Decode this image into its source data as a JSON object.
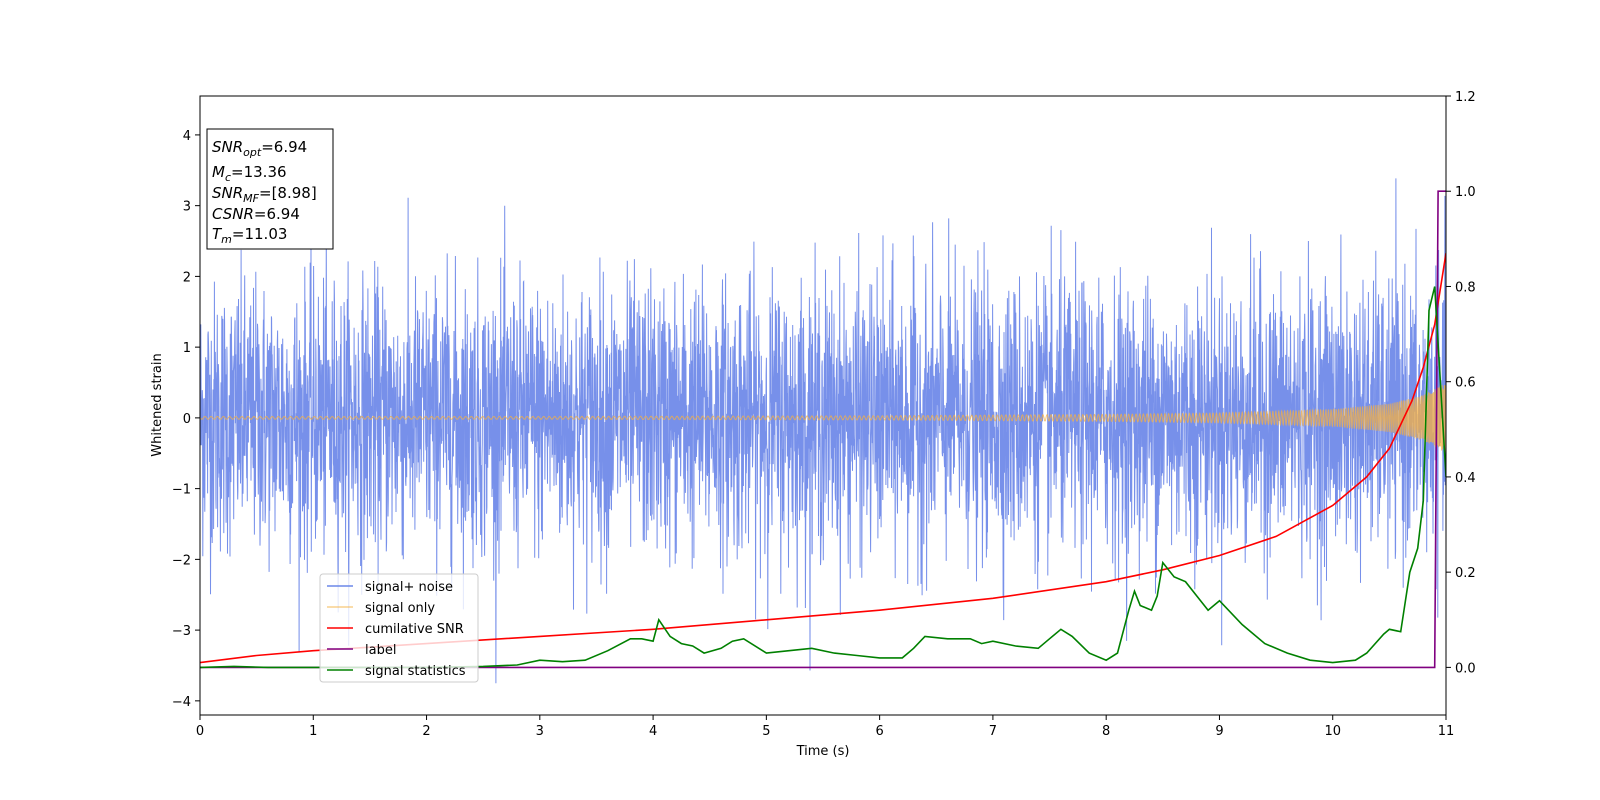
{
  "chart_data": {
    "type": "line",
    "xlabel": "Time (s)",
    "ylabel": "Whitened strain",
    "xlim": [
      0,
      11
    ],
    "ylim": [
      -4.2,
      4.55
    ],
    "ylim_right": [
      -0.1,
      1.2
    ],
    "x_ticks": [
      "0",
      "1",
      "2",
      "3",
      "4",
      "5",
      "6",
      "7",
      "8",
      "9",
      "10",
      "11"
    ],
    "y_ticks": [
      "4",
      "3",
      "2",
      "1",
      "0",
      "−1",
      "−2",
      "−3",
      "−4"
    ],
    "y_tick_values": [
      4,
      3,
      2,
      1,
      0,
      -1,
      -2,
      -3,
      -4
    ],
    "y_right_ticks": [
      "1.2",
      "1.0",
      "0.8",
      "0.6",
      "0.4",
      "0.2",
      "0.0"
    ],
    "y_right_tick_values": [
      1.2,
      1.0,
      0.8,
      0.6,
      0.4,
      0.2,
      0.0
    ],
    "grid": false,
    "legend_position": "lower-left",
    "colors": {
      "noise": "#6b87e8",
      "signal": "#f5b041",
      "cumulative": "#ff0000",
      "label": "#800080",
      "stats": "#008000"
    },
    "series": [
      {
        "name": "signal+ noise",
        "axis": "left",
        "key": "noise",
        "style": "noisy",
        "amplitude_envelope": {
          "x": [
            0,
            11
          ],
          "std": [
            0.95,
            0.95
          ]
        }
      },
      {
        "name": "signal only",
        "axis": "left",
        "key": "signal",
        "style": "chirp",
        "chirp_end_time": 11.03,
        "envelope": {
          "x": [
            0,
            3,
            6,
            8,
            9,
            10,
            10.5,
            10.8,
            11
          ],
          "amp": [
            0.02,
            0.02,
            0.03,
            0.05,
            0.07,
            0.12,
            0.2,
            0.32,
            0.5
          ]
        }
      },
      {
        "name": "cumilative SNR",
        "axis": "right",
        "key": "cumulative",
        "x": [
          0,
          0.5,
          1,
          2,
          3,
          4,
          5,
          6,
          7,
          8,
          8.5,
          9,
          9.5,
          10,
          10.3,
          10.5,
          10.7,
          10.8,
          10.9,
          11
        ],
        "y": [
          0.01,
          0.025,
          0.035,
          0.05,
          0.065,
          0.08,
          0.1,
          0.12,
          0.145,
          0.18,
          0.205,
          0.235,
          0.275,
          0.34,
          0.4,
          0.46,
          0.56,
          0.63,
          0.72,
          0.87
        ]
      },
      {
        "name": "label",
        "axis": "right",
        "key": "label",
        "x": [
          0,
          10.9,
          10.93,
          11
        ],
        "y": [
          0,
          0,
          1.0,
          1.0
        ]
      },
      {
        "name": "signal statistics",
        "axis": "right",
        "key": "stats",
        "x": [
          0,
          0.3,
          0.6,
          1.0,
          1.5,
          2.0,
          2.5,
          2.8,
          3.0,
          3.2,
          3.4,
          3.6,
          3.8,
          3.9,
          4.0,
          4.05,
          4.15,
          4.25,
          4.35,
          4.45,
          4.6,
          4.7,
          4.8,
          5.0,
          5.2,
          5.4,
          5.6,
          5.8,
          6.0,
          6.2,
          6.3,
          6.4,
          6.6,
          6.8,
          6.9,
          7.0,
          7.2,
          7.4,
          7.5,
          7.6,
          7.7,
          7.85,
          8.0,
          8.1,
          8.2,
          8.25,
          8.3,
          8.4,
          8.45,
          8.5,
          8.6,
          8.7,
          8.8,
          8.9,
          9.0,
          9.2,
          9.4,
          9.6,
          9.8,
          10.0,
          10.2,
          10.3,
          10.45,
          10.5,
          10.6,
          10.68,
          10.75,
          10.8,
          10.85,
          10.9,
          11.0
        ],
        "y": [
          0.0,
          0.002,
          0.0,
          0.0,
          0.0,
          0.0,
          0.002,
          0.005,
          0.015,
          0.012,
          0.015,
          0.035,
          0.06,
          0.06,
          0.055,
          0.1,
          0.065,
          0.05,
          0.045,
          0.03,
          0.04,
          0.055,
          0.06,
          0.03,
          0.035,
          0.04,
          0.03,
          0.025,
          0.02,
          0.02,
          0.04,
          0.065,
          0.06,
          0.06,
          0.05,
          0.055,
          0.045,
          0.04,
          0.06,
          0.08,
          0.065,
          0.03,
          0.015,
          0.03,
          0.12,
          0.16,
          0.13,
          0.12,
          0.15,
          0.22,
          0.19,
          0.18,
          0.15,
          0.12,
          0.14,
          0.09,
          0.05,
          0.03,
          0.015,
          0.01,
          0.015,
          0.03,
          0.07,
          0.08,
          0.075,
          0.2,
          0.25,
          0.35,
          0.75,
          0.8,
          0.4
        ]
      }
    ],
    "annotation": {
      "lines": [
        {
          "sym": "SNR",
          "sub": "opt",
          "val": "=6.94"
        },
        {
          "sym": "M",
          "sub": "c",
          "val": "=13.36"
        },
        {
          "sym": "SNR",
          "sub": "MF",
          "val": "=[8.98]"
        },
        {
          "sym": "CSNR",
          "sub": "",
          "val": "=6.94"
        },
        {
          "sym": "T",
          "sub": "m",
          "val": "=11.03"
        }
      ]
    }
  }
}
